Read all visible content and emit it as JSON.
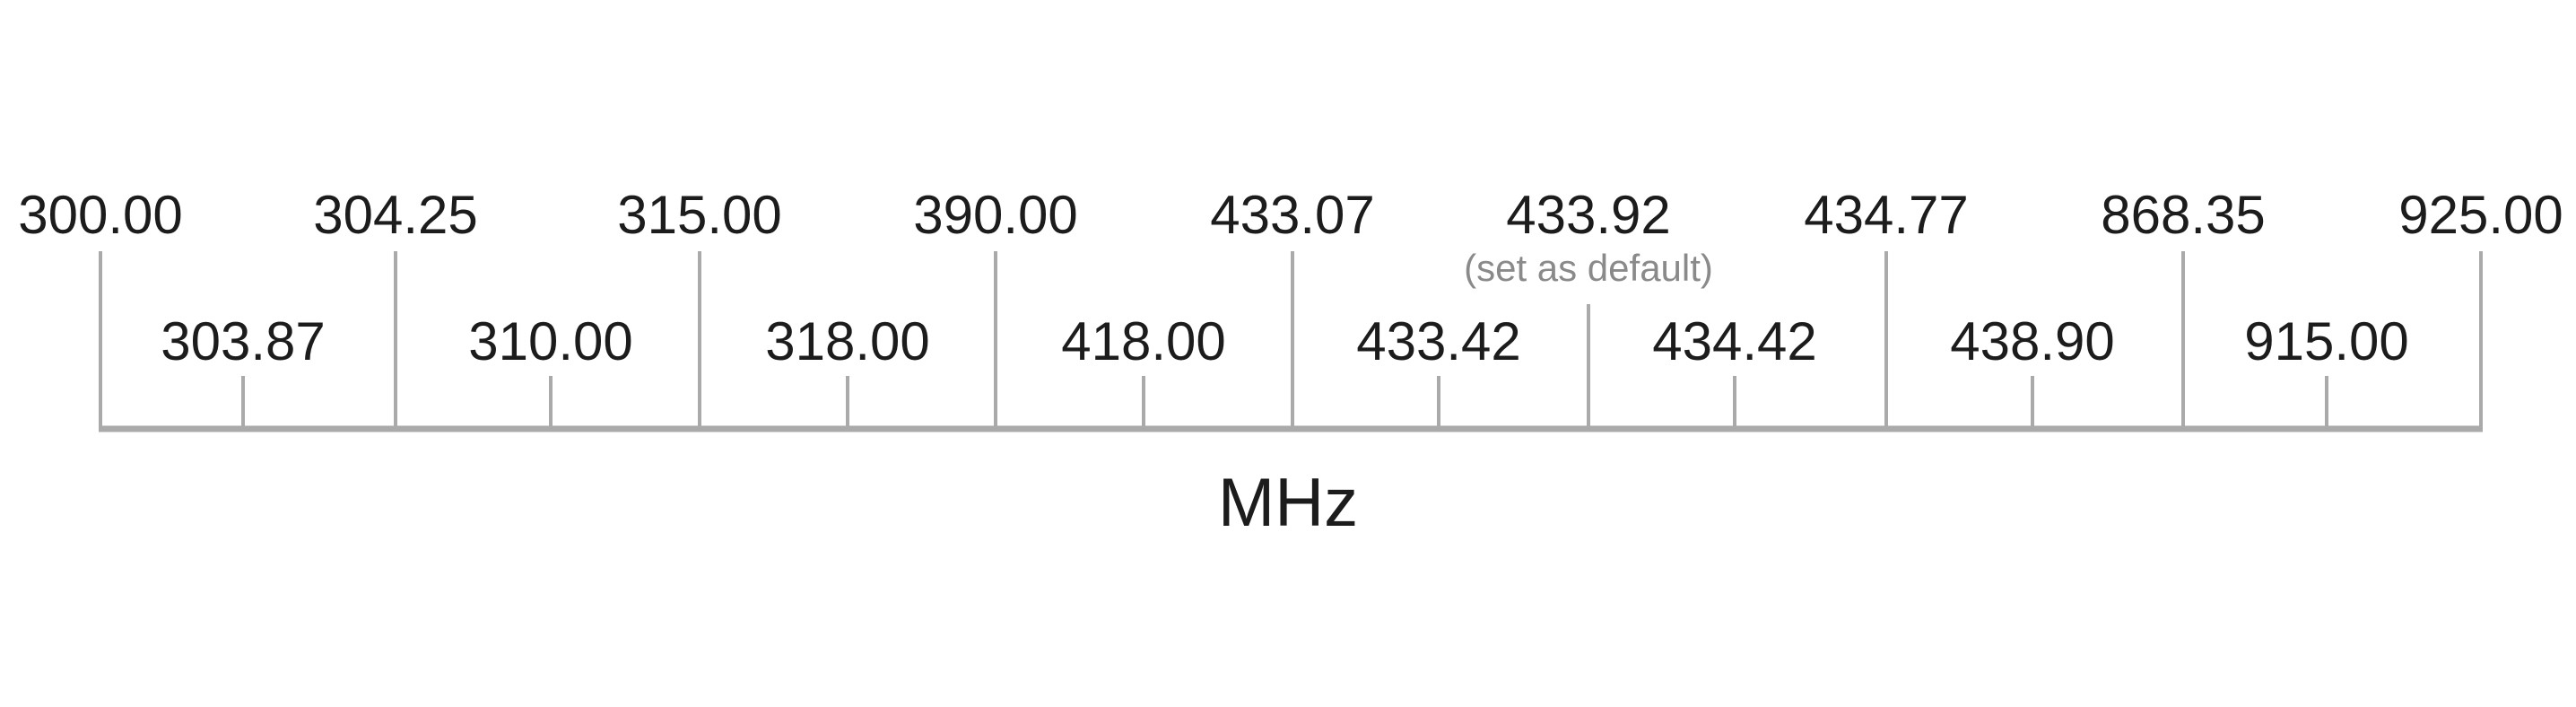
{
  "scale": {
    "unit": "MHz",
    "major_ticks": [
      "300.00",
      "304.25",
      "315.00",
      "390.00",
      "433.07",
      "433.92",
      "434.77",
      "868.35",
      "925.00"
    ],
    "minor_ticks": [
      "303.87",
      "310.00",
      "318.00",
      "418.00",
      "433.42",
      "434.42",
      "438.90",
      "915.00"
    ],
    "default_frequency": "433.92",
    "default_note": "(set as default)",
    "colors": {
      "text": "#1c1c1c",
      "axis": "#aaaaaa",
      "note": "#8a8a8a"
    }
  }
}
